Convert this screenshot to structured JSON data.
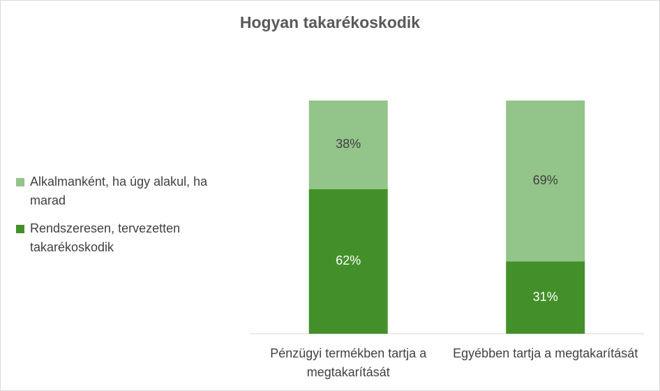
{
  "chart_data": {
    "type": "stacked_bar",
    "title": "Hogyan takarékoskodik",
    "categories": [
      "Pénzügyi termékben tartja a megtakarítását",
      "Egyébben tartja a megtakarítását"
    ],
    "series": [
      {
        "name": "Rendszeresen, tervezetten takarékoskodik",
        "color": "#43902a",
        "values": [
          62,
          31
        ],
        "value_labels": [
          "62%",
          "31%"
        ]
      },
      {
        "name": "Alkalmanként, ha úgy alakul, ha marad",
        "color": "#93c48a",
        "values": [
          38,
          69
        ],
        "value_labels": [
          "38%",
          "69%"
        ]
      }
    ],
    "ylim": [
      0,
      100
    ],
    "legend": "left"
  }
}
